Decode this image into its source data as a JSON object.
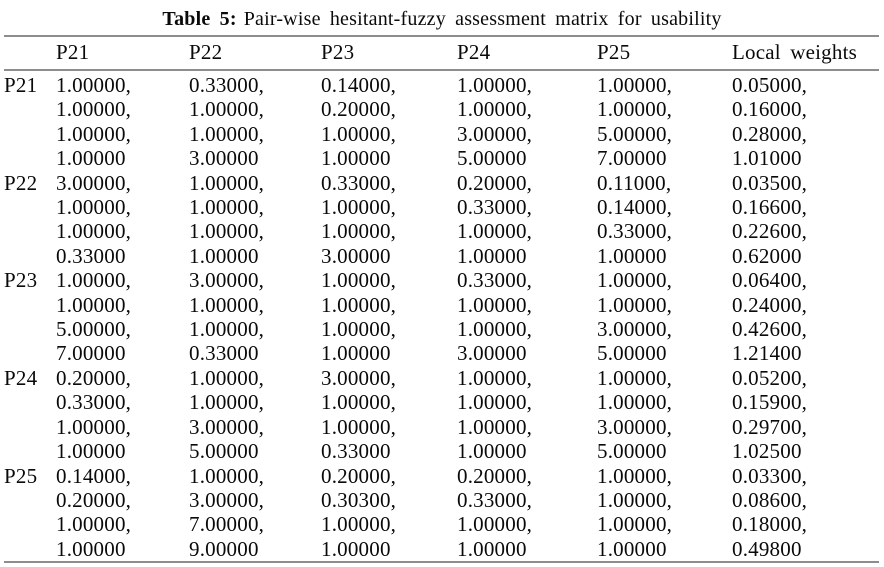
{
  "caption": {
    "label": "Table 5:",
    "text": "Pair-wise hesitant-fuzzy assessment matrix for usability"
  },
  "table": {
    "headers": [
      "P21",
      "P22",
      "P23",
      "P24",
      "P25",
      "Local weights"
    ],
    "rows": [
      {
        "label": "P21",
        "cells": [
          "1.00000,\n1.00000,\n1.00000,\n1.00000",
          "0.33000,\n1.00000,\n1.00000,\n3.00000",
          "0.14000,\n0.20000,\n1.00000,\n1.00000",
          "1.00000,\n1.00000,\n3.00000,\n5.00000",
          "1.00000,\n1.00000,\n5.00000,\n7.00000",
          "0.05000,\n0.16000,\n0.28000,\n1.01000"
        ]
      },
      {
        "label": "P22",
        "cells": [
          "3.00000,\n1.00000,\n1.00000,\n0.33000",
          "1.00000,\n1.00000,\n1.00000,\n1.00000",
          "0.33000,\n1.00000,\n1.00000,\n3.00000",
          "0.20000,\n0.33000,\n1.00000,\n1.00000",
          "0.11000,\n0.14000,\n0.33000,\n1.00000",
          "0.03500,\n0.16600,\n0.22600,\n0.62000"
        ]
      },
      {
        "label": "P23",
        "cells": [
          "1.00000,\n1.00000,\n5.00000,\n7.00000",
          "3.00000,\n1.00000,\n1.00000,\n0.33000",
          "1.00000,\n1.00000,\n1.00000,\n1.00000",
          "0.33000,\n1.00000,\n1.00000,\n3.00000",
          "1.00000,\n1.00000,\n3.00000,\n5.00000",
          "0.06400,\n0.24000,\n0.42600,\n1.21400"
        ]
      },
      {
        "label": "P24",
        "cells": [
          "0.20000,\n0.33000,\n1.00000,\n1.00000",
          "1.00000,\n1.00000,\n3.00000,\n5.00000",
          "3.00000,\n1.00000,\n1.00000,\n0.33000",
          "1.00000,\n1.00000,\n1.00000,\n1.00000",
          "1.00000,\n1.00000,\n3.00000,\n5.00000",
          "0.05200,\n0.15900,\n0.29700,\n1.02500"
        ]
      },
      {
        "label": "P25",
        "cells": [
          "0.14000,\n0.20000,\n1.00000,\n1.00000",
          "1.00000,\n3.00000,\n7.00000,\n9.00000",
          "0.20000,\n0.30300,\n1.00000,\n1.00000",
          "0.20000,\n0.33000,\n1.00000,\n1.00000",
          "1.00000,\n1.00000,\n1.00000,\n1.00000",
          "0.03300,\n0.08600,\n0.18000,\n0.49800"
        ]
      }
    ]
  },
  "colors": {
    "rule": "#8d8d8d",
    "text": "#0a0a0a",
    "background": "#ffffff"
  }
}
